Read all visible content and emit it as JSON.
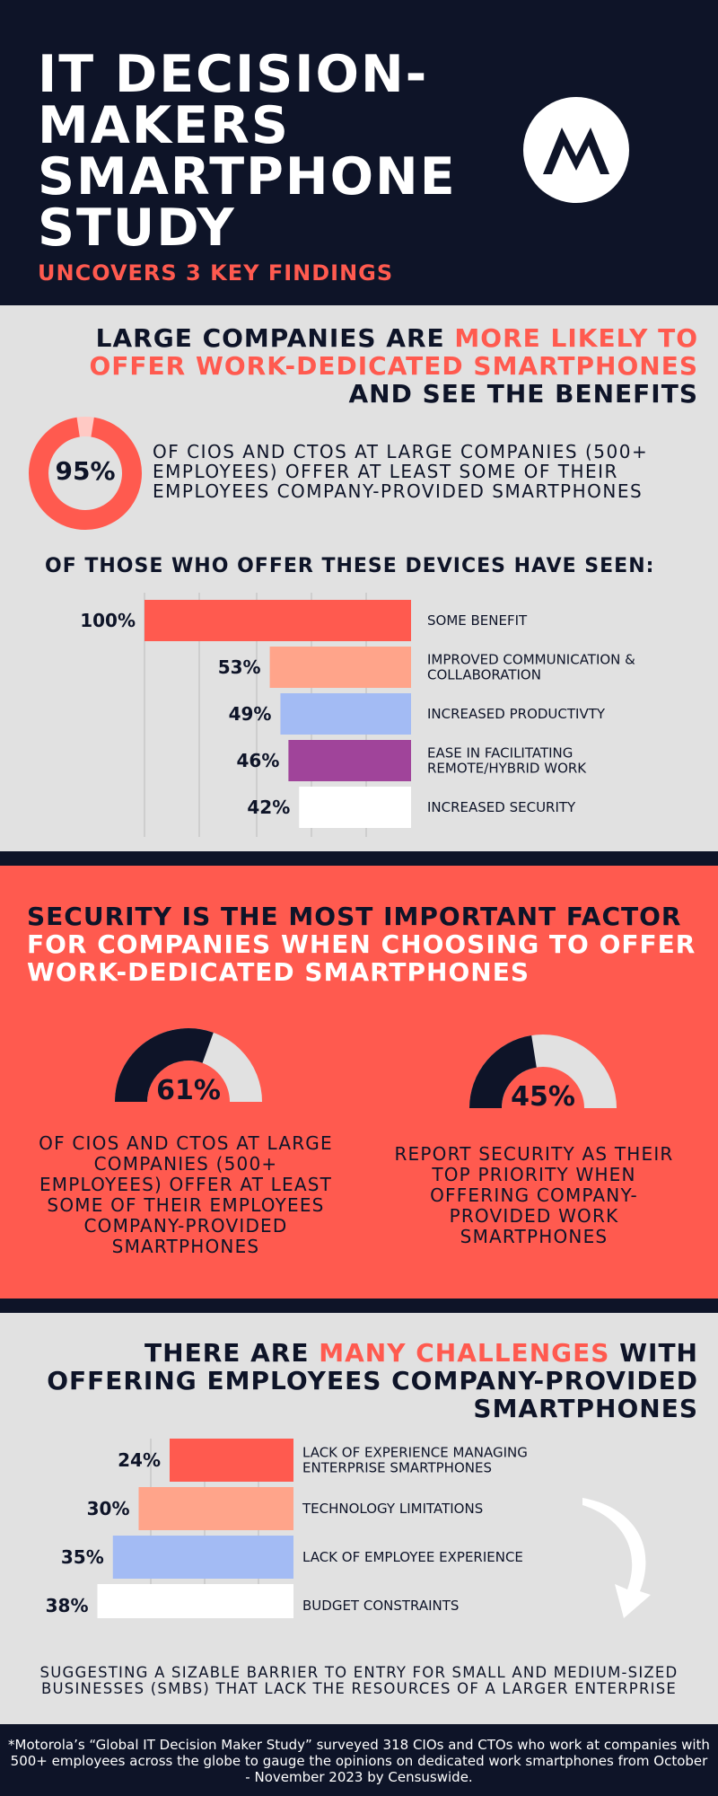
{
  "header": {
    "title": "IT DECISION-MAKERS SMARTPHONE STUDY",
    "subtitle": "UNCOVERS 3 KEY FINDINGS",
    "logo_icon": "motorola-logo-icon"
  },
  "section1": {
    "heading": {
      "part1": "LARGE COMPANIES ARE ",
      "highlight": "MORE LIKELY TO OFFER WORK-DEDICATED SMARTPHONES",
      "part2": " AND SEE THE BENEFITS"
    },
    "stat_value": "95%",
    "stat_text": "OF CIOS AND CTOS AT LARGE COMPANIES (500+ EMPLOYEES) OFFER AT LEAST SOME OF THEIR EMPLOYEES COMPANY-PROVIDED SMARTPHONES",
    "subheading": "OF THOSE WHO OFFER THESE DEVICES HAVE SEEN:"
  },
  "section2": {
    "heading": {
      "part1": "SECURITY IS THE MOST IMPORTANT FACTOR",
      "part2": "FOR COMPANIES WHEN CHOOSING TO OFFER WORK-DEDICATED SMARTPHONES"
    },
    "gauge1": {
      "value": "61%",
      "caption": "OF CIOS AND CTOS AT LARGE COMPANIES (500+ EMPLOYEES) OFFER AT LEAST SOME OF THEIR EMPLOYEES COMPANY-PROVIDED SMARTPHONES"
    },
    "gauge2": {
      "value": "45%",
      "caption": "REPORT SECURITY AS THEIR TOP PRIORITY WHEN OFFERING COMPANY-PROVIDED WORK SMARTPHONES"
    }
  },
  "section3": {
    "heading": {
      "part1": "THERE ARE ",
      "highlight": "MANY CHALLENGES",
      "part2": " WITH OFFERING EMPLOYEES COMPANY-PROVIDED SMARTPHONES"
    },
    "footer_text": "SUGGESTING A SIZABLE BARRIER TO ENTRY FOR SMALL AND MEDIUM-SIZED BUSINESSES (SMBS) THAT LACK THE RESOURCES OF A LARGER ENTERPRISE",
    "arrow_icon": "curved-arrow-icon"
  },
  "footnote": "*Motorola’s “Global IT Decision Maker Study” surveyed 318 CIOs and CTOs who work at companies with 500+ employees across the globe to gauge the opinions on dedicated work smartphones from October - November 2023 by Censuswide.",
  "colors": {
    "navy": "#0e1428",
    "coral": "#ff5a4f",
    "peach": "#ffa48a",
    "blue": "#a3bbf4",
    "purple": "#a0449a",
    "white": "#ffffff",
    "grey": "#e1e1e1"
  },
  "chart_data": [
    {
      "type": "bar",
      "orientation": "horizontal",
      "categories": [
        "SOME BENEFIT",
        "IMPROVED COMMUNICATION & COLLABORATION",
        "INCREASED PRODUCTIVTY",
        "EASE IN FACILITATING REMOTE/HYBRID WORK",
        "INCREASED SECURITY"
      ],
      "values": [
        100,
        53,
        49,
        46,
        42
      ],
      "value_labels": [
        "100%",
        "53%",
        "49%",
        "46%",
        "42%"
      ],
      "colors": [
        "#ff5a4f",
        "#ffa48a",
        "#a3bbf4",
        "#a0449a",
        "#ffffff"
      ],
      "xlim": [
        0,
        100
      ],
      "grid": true
    },
    {
      "type": "pie",
      "variant": "donut",
      "values": [
        95,
        5
      ],
      "value_label": "95%",
      "colors": [
        "#ff5a4f",
        "#ffc9c4"
      ]
    },
    {
      "type": "pie",
      "variant": "gauge",
      "values": [
        61,
        39
      ],
      "value_label": "61%",
      "colors": [
        "#0e1428",
        "#e1e1e1"
      ]
    },
    {
      "type": "pie",
      "variant": "gauge",
      "values": [
        45,
        55
      ],
      "value_label": "45%",
      "colors": [
        "#0e1428",
        "#e1e1e1"
      ]
    },
    {
      "type": "bar",
      "orientation": "horizontal",
      "categories": [
        "LACK OF EXPERIENCE MANAGING ENTERPRISE SMARTPHONES",
        "TECHNOLOGY LIMITATIONS",
        "LACK OF EMPLOYEE EXPERIENCE",
        "BUDGET CONSTRAINTS"
      ],
      "values": [
        24,
        30,
        35,
        38
      ],
      "value_labels": [
        "24%",
        "30%",
        "35%",
        "38%"
      ],
      "colors": [
        "#ff5a4f",
        "#ffa48a",
        "#a3bbf4",
        "#ffffff"
      ],
      "grid": true
    }
  ]
}
